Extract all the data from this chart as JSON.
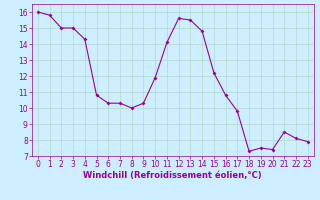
{
  "x": [
    0,
    1,
    2,
    3,
    4,
    5,
    6,
    7,
    8,
    9,
    10,
    11,
    12,
    13,
    14,
    15,
    16,
    17,
    18,
    19,
    20,
    21,
    22,
    23
  ],
  "y": [
    16,
    15.8,
    15,
    15,
    14.3,
    10.8,
    10.3,
    10.3,
    10,
    10.3,
    11.9,
    14.1,
    15.6,
    15.5,
    14.8,
    12.2,
    10.8,
    9.8,
    7.3,
    7.5,
    7.4,
    8.5,
    8.1,
    7.9
  ],
  "line_color": "#990099",
  "marker": "D",
  "marker_size": 2,
  "background_color": "#cceeff",
  "grid_color": "#aaddcc",
  "xlabel": "Windchill (Refroidissement éolien,°C)",
  "ylim": [
    7,
    16.5
  ],
  "xlim": [
    -0.5,
    23.5
  ],
  "yticks": [
    7,
    8,
    9,
    10,
    11,
    12,
    13,
    14,
    15,
    16
  ],
  "xticks": [
    0,
    1,
    2,
    3,
    4,
    5,
    6,
    7,
    8,
    9,
    10,
    11,
    12,
    13,
    14,
    15,
    16,
    17,
    18,
    19,
    20,
    21,
    22,
    23
  ],
  "tick_color": "#990099",
  "label_color": "#990099",
  "tick_fontsize": 5.5,
  "xlabel_fontsize": 6.0
}
